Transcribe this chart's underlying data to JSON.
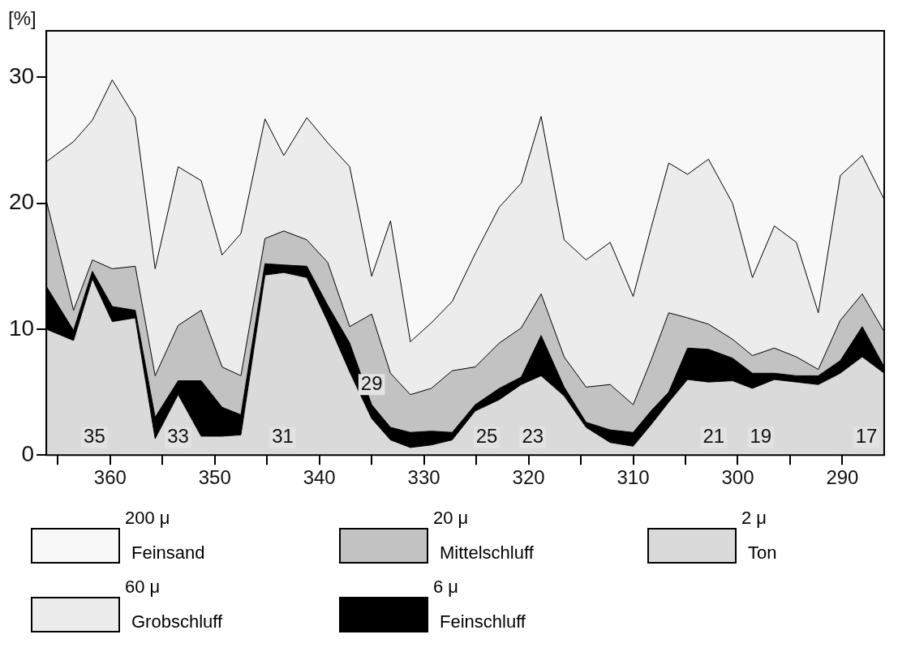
{
  "chart_data": {
    "type": "area",
    "stacked": true,
    "ylabel": "[%]",
    "legend": "bottom",
    "marker": "none",
    "x": [
      366.1,
      363.5,
      361.7,
      359.8,
      357.6,
      355.7,
      353.5,
      351.3,
      349.3,
      347.5,
      345.2,
      343.4,
      341.2,
      339.2,
      337.1,
      335.0,
      333.2,
      331.3,
      329.3,
      327.3,
      325.1,
      322.8,
      320.7,
      318.8,
      316.6,
      314.5,
      312.2,
      310.0,
      308.3,
      306.6,
      304.8,
      302.8,
      300.5,
      298.6,
      296.5,
      294.4,
      292.3,
      290.2,
      288.1,
      286.0
    ],
    "xlim": [
      366.1,
      286
    ],
    "xticks": [
      {
        "value": 365,
        "label": null
      },
      360,
      {
        "value": 355,
        "label": null
      },
      350,
      {
        "value": 345,
        "label": null
      },
      340,
      {
        "value": 335,
        "label": null
      },
      330,
      {
        "value": 325,
        "label": null
      },
      320,
      {
        "value": 315,
        "label": null
      },
      310,
      {
        "value": 305,
        "label": null
      },
      300,
      {
        "value": 295,
        "label": null
      },
      290
    ],
    "ylim": [
      0,
      33.7
    ],
    "yticks": [
      0,
      10,
      20,
      30
    ],
    "series": [
      {
        "name": "Ton",
        "color": "#dadada",
        "values": [
          10.0,
          9.1,
          14.0,
          10.6,
          10.9,
          1.3,
          4.8,
          1.5,
          1.5,
          1.6,
          14.3,
          14.5,
          14.1,
          10.6,
          6.6,
          2.9,
          1.2,
          0.6,
          0.8,
          1.2,
          3.5,
          4.4,
          5.6,
          6.3,
          4.7,
          2.2,
          1.0,
          0.7,
          2.4,
          4.2,
          6.0,
          5.8,
          5.9,
          5.3,
          6.0,
          5.8,
          5.6,
          6.5,
          7.8,
          6.5
        ]
      },
      {
        "name": "Feinschluff",
        "color": "#000000",
        "values": [
          3.4,
          0.8,
          0.6,
          1.2,
          0.6,
          1.7,
          1.1,
          4.4,
          2.3,
          1.6,
          0.9,
          0.6,
          0.9,
          1.3,
          2.3,
          1.1,
          1.0,
          1.2,
          1.1,
          0.6,
          0.5,
          0.9,
          0.6,
          3.2,
          0.7,
          0.4,
          1.0,
          1.1,
          1.1,
          0.8,
          2.5,
          2.6,
          1.8,
          1.2,
          0.5,
          0.5,
          0.7,
          1.0,
          2.4,
          0.5
        ]
      },
      {
        "name": "Mittelschluff",
        "color": "#c2c2c2",
        "values": [
          6.8,
          1.6,
          0.9,
          3.0,
          3.5,
          3.3,
          4.4,
          5.6,
          3.2,
          3.1,
          2.0,
          2.7,
          2.1,
          3.4,
          1.3,
          7.2,
          4.3,
          3.0,
          3.4,
          4.9,
          3.0,
          3.6,
          3.9,
          3.3,
          2.4,
          2.8,
          3.6,
          2.2,
          4.0,
          6.3,
          2.4,
          2.0,
          1.5,
          1.4,
          2.0,
          1.5,
          0.5,
          3.2,
          2.6,
          2.8
        ]
      },
      {
        "name": "Grobschluff",
        "color": "#ececec",
        "values": [
          3.1,
          13.4,
          11.1,
          15.0,
          11.8,
          8.5,
          12.6,
          10.3,
          8.9,
          11.3,
          9.5,
          6.0,
          9.7,
          9.5,
          12.7,
          3.0,
          12.1,
          4.2,
          5.2,
          5.5,
          9.0,
          10.8,
          11.5,
          14.1,
          9.3,
          10.1,
          11.3,
          8.6,
          10.5,
          11.9,
          11.4,
          13.1,
          10.8,
          6.2,
          9.7,
          9.1,
          4.5,
          11.5,
          11.0,
          10.5
        ]
      },
      {
        "name": "Feinsand",
        "color": "#f8f8f8",
        "values": [
          10.4,
          8.8,
          7.1,
          3.9,
          6.9,
          18.9,
          10.8,
          11.9,
          17.8,
          16.1,
          7.0,
          9.9,
          6.9,
          8.9,
          10.8,
          19.5,
          15.1,
          24.7,
          23.2,
          21.5,
          17.7,
          14.0,
          12.1,
          6.8,
          16.6,
          18.2,
          16.8,
          21.1,
          15.7,
          10.5,
          11.4,
          10.2,
          13.7,
          19.6,
          15.5,
          16.8,
          22.4,
          11.5,
          9.9,
          13.4
        ]
      }
    ],
    "annotations": [
      "2 μ",
      "6 μ",
      "20 μ",
      "60 μ",
      "200 μ",
      {
        "text": "35",
        "x": 361.5,
        "y": 1.4
      },
      {
        "text": "33",
        "x": 353.5,
        "y": 1.4
      },
      {
        "text": "31",
        "x": 343.5,
        "y": 1.4
      },
      {
        "text": "29",
        "x": 335.0,
        "y": 5.6
      },
      {
        "text": "25",
        "x": 324.0,
        "y": 1.4
      },
      {
        "text": "23",
        "x": 319.6,
        "y": 1.4
      },
      {
        "text": "21",
        "x": 302.3,
        "y": 1.4
      },
      {
        "text": "19",
        "x": 297.8,
        "y": 1.4
      },
      {
        "text": "17",
        "x": 287.7,
        "y": 1.4
      }
    ]
  }
}
